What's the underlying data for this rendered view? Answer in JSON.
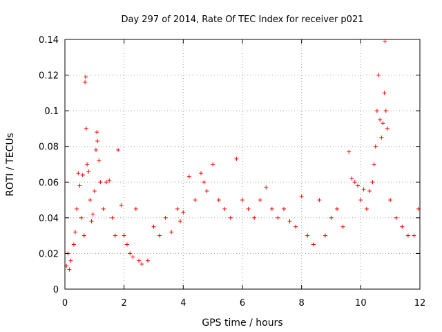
{
  "chart_data": {
    "type": "scatter",
    "title": "Day 297 of 2014, Rate Of TEC Index for receiver p021",
    "xlabel": "GPS time / hours",
    "ylabel": "ROTI / TECUs",
    "xlim": [
      0,
      12
    ],
    "ylim": [
      0,
      0.14
    ],
    "x_ticks": [
      "0",
      "2",
      "4",
      "6",
      "8",
      "10",
      "12"
    ],
    "y_ticks": [
      "0",
      "0.02",
      "0.04",
      "0.06",
      "0.08",
      "0.1",
      "0.12",
      "0.14"
    ],
    "grid": true,
    "marker": "+",
    "color": "#ff0000",
    "series": [
      {
        "name": "ROTI",
        "description_points": "representative sample of plotted points",
        "points": [
          [
            0.05,
            0.013
          ],
          [
            0.1,
            0.02
          ],
          [
            0.15,
            0.011
          ],
          [
            0.2,
            0.016
          ],
          [
            0.3,
            0.025
          ],
          [
            0.35,
            0.032
          ],
          [
            0.4,
            0.045
          ],
          [
            0.45,
            0.065
          ],
          [
            0.5,
            0.058
          ],
          [
            0.55,
            0.04
          ],
          [
            0.6,
            0.064
          ],
          [
            0.65,
            0.03
          ],
          [
            0.68,
            0.116
          ],
          [
            0.7,
            0.119
          ],
          [
            0.72,
            0.09
          ],
          [
            0.75,
            0.07
          ],
          [
            0.8,
            0.066
          ],
          [
            0.85,
            0.05
          ],
          [
            0.9,
            0.038
          ],
          [
            0.95,
            0.042
          ],
          [
            1.0,
            0.055
          ],
          [
            1.05,
            0.078
          ],
          [
            1.08,
            0.088
          ],
          [
            1.1,
            0.083
          ],
          [
            1.15,
            0.072
          ],
          [
            1.2,
            0.06
          ],
          [
            1.3,
            0.045
          ],
          [
            1.4,
            0.06
          ],
          [
            1.5,
            0.061
          ],
          [
            1.6,
            0.04
          ],
          [
            1.7,
            0.03
          ],
          [
            1.8,
            0.078
          ],
          [
            1.9,
            0.047
          ],
          [
            2.0,
            0.03
          ],
          [
            2.1,
            0.025
          ],
          [
            2.2,
            0.02
          ],
          [
            2.3,
            0.018
          ],
          [
            2.4,
            0.045
          ],
          [
            2.5,
            0.016
          ],
          [
            2.6,
            0.014
          ],
          [
            2.8,
            0.016
          ],
          [
            3.0,
            0.035
          ],
          [
            3.2,
            0.03
          ],
          [
            3.4,
            0.04
          ],
          [
            3.6,
            0.032
          ],
          [
            3.8,
            0.045
          ],
          [
            3.9,
            0.038
          ],
          [
            4.0,
            0.043
          ],
          [
            4.2,
            0.063
          ],
          [
            4.4,
            0.05
          ],
          [
            4.6,
            0.065
          ],
          [
            4.7,
            0.06
          ],
          [
            4.8,
            0.055
          ],
          [
            5.0,
            0.07
          ],
          [
            5.2,
            0.05
          ],
          [
            5.4,
            0.045
          ],
          [
            5.6,
            0.04
          ],
          [
            5.8,
            0.073
          ],
          [
            6.0,
            0.05
          ],
          [
            6.2,
            0.045
          ],
          [
            6.4,
            0.04
          ],
          [
            6.6,
            0.05
          ],
          [
            6.8,
            0.057
          ],
          [
            7.0,
            0.045
          ],
          [
            7.2,
            0.04
          ],
          [
            7.4,
            0.045
          ],
          [
            7.6,
            0.038
          ],
          [
            7.8,
            0.035
          ],
          [
            8.0,
            0.052
          ],
          [
            8.2,
            0.03
          ],
          [
            8.4,
            0.025
          ],
          [
            8.6,
            0.05
          ],
          [
            8.8,
            0.03
          ],
          [
            9.0,
            0.04
          ],
          [
            9.2,
            0.045
          ],
          [
            9.4,
            0.035
          ],
          [
            9.6,
            0.077
          ],
          [
            9.7,
            0.062
          ],
          [
            9.8,
            0.06
          ],
          [
            9.9,
            0.058
          ],
          [
            10.0,
            0.05
          ],
          [
            10.1,
            0.056
          ],
          [
            10.2,
            0.045
          ],
          [
            10.3,
            0.055
          ],
          [
            10.4,
            0.06
          ],
          [
            10.45,
            0.07
          ],
          [
            10.5,
            0.08
          ],
          [
            10.55,
            0.1
          ],
          [
            10.6,
            0.12
          ],
          [
            10.65,
            0.095
          ],
          [
            10.7,
            0.085
          ],
          [
            10.75,
            0.093
          ],
          [
            10.8,
            0.11
          ],
          [
            10.82,
            0.139
          ],
          [
            10.85,
            0.1
          ],
          [
            10.9,
            0.09
          ],
          [
            11.0,
            0.05
          ],
          [
            11.2,
            0.04
          ],
          [
            11.4,
            0.035
          ],
          [
            11.6,
            0.03
          ],
          [
            11.8,
            0.03
          ],
          [
            11.95,
            0.045
          ]
        ]
      }
    ]
  }
}
